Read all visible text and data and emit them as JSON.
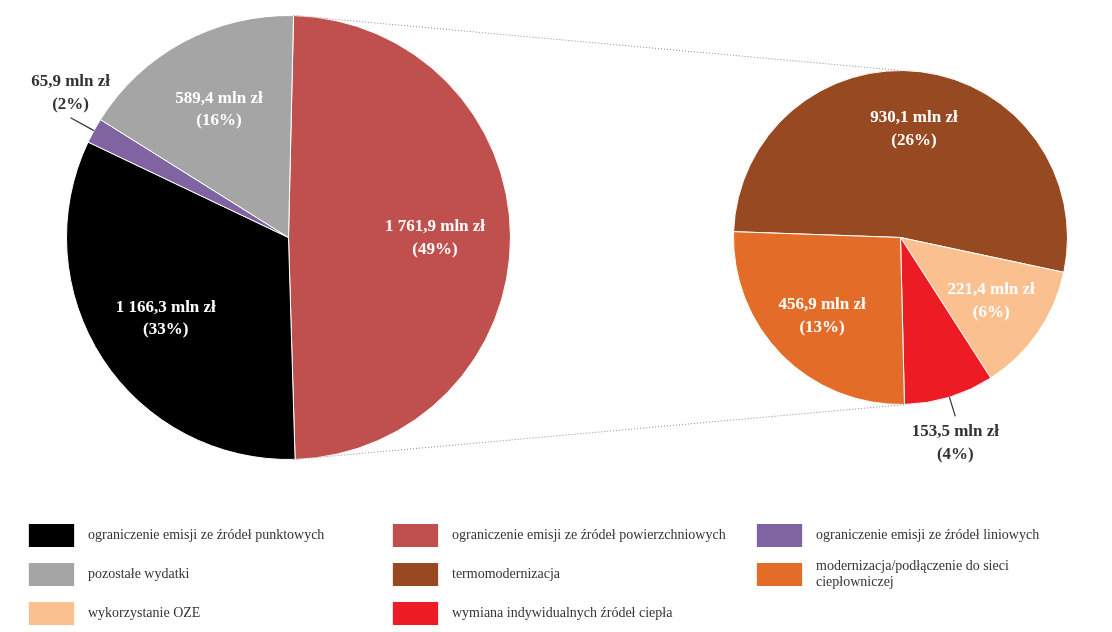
{
  "chart_data": [
    {
      "type": "pie",
      "legend": "bottom",
      "categories": [
        "ograniczenie emisji ze źródeł powierzchniowych",
        "ograniczenie emisji ze źródeł punktowych",
        "ograniczenie emisji ze źródeł liniowych",
        "pozostałe wydatki"
      ],
      "values": [
        1761.9,
        1166.3,
        65.9,
        589.4
      ],
      "colors": [
        "#c0504d",
        "#000000",
        "#8064a2",
        "#a5a5a5"
      ],
      "value_labels": [
        "1 761,9 mln zł (49%)",
        "1 166,3 mln zł (33%)",
        "65,9 mln zł (2%)",
        "589,4 mln zł (16%)"
      ]
    },
    {
      "type": "pie",
      "legend": "bottom",
      "categories": [
        "termomodernizacja",
        "wykorzystanie OZE",
        "wymiana indywidualnych źródeł ciepła",
        "modernizacja/podłączenie do sieci ciepłowniczej"
      ],
      "values": [
        930.1,
        221.4,
        153.5,
        456.9
      ],
      "colors": [
        "#974a22",
        "#fac090",
        "#ed1c24",
        "#e36c28"
      ],
      "value_labels": [
        "930,1 mln zł (26%)",
        "221,4 mln zł (6%)",
        "153,5 mln zł (4%)",
        "456,9 mln zł (13%)"
      ]
    }
  ]
}
